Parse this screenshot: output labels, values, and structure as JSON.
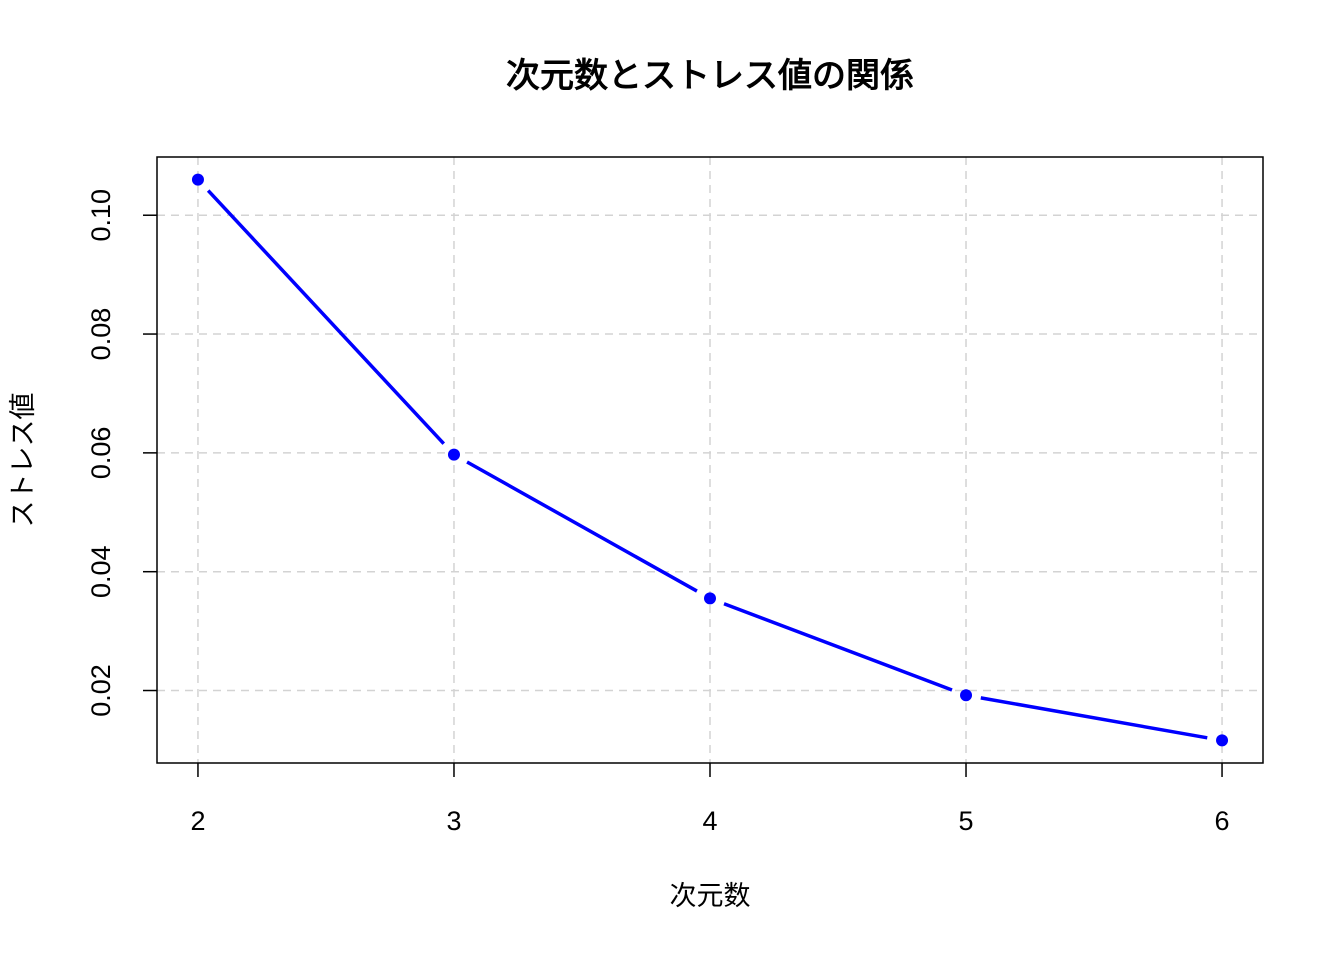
{
  "chart_data": {
    "type": "line",
    "title": "次元数とストレス値の関係",
    "x_label": "次元数",
    "y_label": "ストレス値",
    "x": [
      2,
      3,
      4,
      5,
      6
    ],
    "series": [
      {
        "color": "#0000ff",
        "values": [
          0.106,
          0.0597,
          0.0355,
          0.0192,
          0.0116
        ]
      }
    ],
    "xlim": [
      1.84,
      6.16
    ],
    "xticks": [
      2,
      3,
      4,
      5,
      6
    ],
    "ylim": [
      0.0078,
      0.1098
    ],
    "yticks": [
      {
        "value": 0.02,
        "label": "0.02"
      },
      {
        "value": 0.04,
        "label": "0.04"
      },
      {
        "value": 0.06,
        "label": "0.06"
      },
      {
        "value": 0.08,
        "label": "0.08"
      },
      {
        "value": 0.1,
        "label": "0.10"
      }
    ],
    "grid": true
  }
}
